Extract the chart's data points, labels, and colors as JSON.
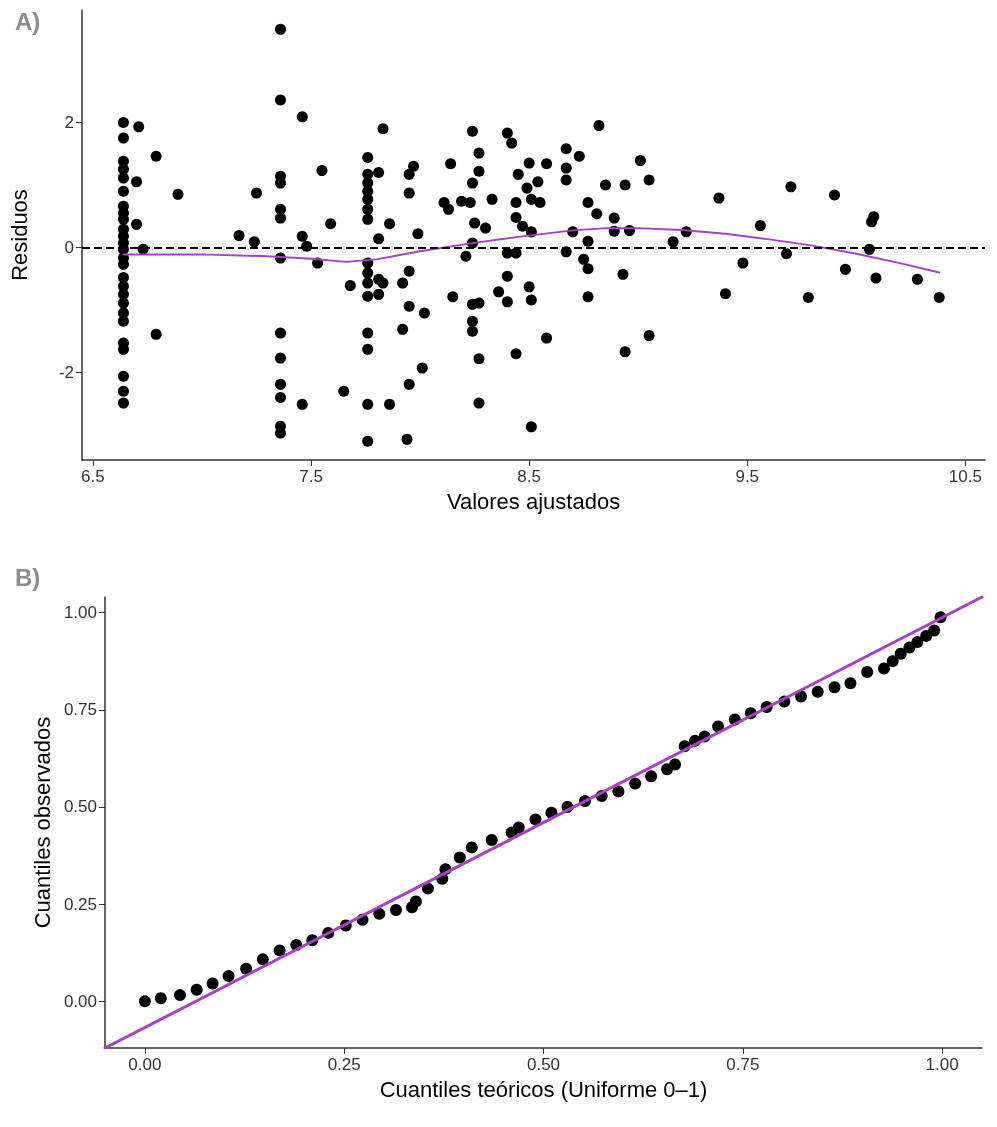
{
  "chart_data": [
    {
      "type": "scatter",
      "title": "A)",
      "xlabel": "Valores ajustados",
      "ylabel": "Residuos",
      "xlim": [
        6.45,
        10.59
      ],
      "ylim": [
        -3.4,
        3.8
      ],
      "xticks": [
        6.5,
        7.5,
        8.5,
        9.5,
        10.5
      ],
      "yticks": [
        -2,
        0,
        2
      ],
      "grid": false,
      "ref_lines": [
        {
          "axis": "y",
          "value": 0,
          "line_style": "dashed",
          "color": "#000000"
        }
      ],
      "series": [
        {
          "marker": "circle",
          "color": "#000000",
          "x": [
            6.64,
            6.64,
            6.64,
            6.64,
            6.64,
            6.64,
            6.64,
            6.64,
            6.64,
            6.64,
            6.64,
            6.64,
            6.64,
            6.64,
            6.64,
            6.64,
            6.64,
            6.64,
            6.64,
            6.64,
            6.64,
            6.64,
            6.64,
            6.64,
            6.64,
            6.64,
            6.71,
            6.7,
            6.7,
            6.73,
            6.79,
            6.79,
            6.89,
            7.17,
            7.25,
            7.24,
            7.36,
            7.36,
            7.36,
            7.36,
            7.36,
            7.36,
            7.36,
            7.36,
            7.36,
            7.36,
            7.36,
            7.36,
            7.36,
            7.46,
            7.46,
            7.48,
            7.46,
            7.55,
            7.59,
            7.53,
            7.65,
            7.68,
            7.76,
            7.76,
            7.76,
            7.76,
            7.76,
            7.76,
            7.76,
            7.76,
            7.76,
            7.76,
            7.76,
            7.76,
            7.76,
            7.76,
            7.76,
            7.81,
            7.81,
            7.81,
            7.81,
            7.83,
            7.86,
            7.83,
            7.86,
            7.95,
            7.97,
            7.95,
            7.99,
            7.95,
            7.92,
            7.95,
            8.02,
            7.92,
            8.01,
            7.95,
            7.94,
            8.14,
            8.11,
            8.13,
            8.15,
            8.24,
            8.27,
            8.27,
            8.24,
            8.19,
            8.23,
            8.25,
            8.3,
            8.24,
            8.21,
            8.33,
            8.24,
            8.27,
            8.24,
            8.24,
            8.27,
            8.27,
            8.4,
            8.42,
            8.36,
            8.4,
            8.4,
            8.4,
            8.44,
            8.45,
            8.44,
            8.44,
            8.47,
            8.44,
            8.5,
            8.49,
            8.54,
            8.51,
            8.55,
            8.51,
            8.5,
            8.51,
            8.58,
            8.51,
            8.58,
            8.67,
            8.73,
            8.67,
            8.67,
            8.77,
            8.81,
            8.7,
            8.77,
            8.67,
            8.75,
            8.77,
            8.77,
            8.82,
            8.85,
            8.89,
            8.89,
            8.93,
            8.94,
            8.94,
            8.96,
            9.01,
            9.05,
            9.05,
            9.16,
            9.22,
            9.37,
            9.4,
            9.48,
            9.56,
            9.68,
            9.7,
            9.78,
            9.9,
            9.95,
            10.06,
            10.07,
            10.08,
            10.09,
            10.28,
            10.38
          ],
          "values": [
            2.0,
            1.75,
            1.38,
            1.25,
            1.11,
            0.9,
            0.66,
            0.55,
            0.45,
            0.29,
            0.18,
            0.07,
            -0.03,
            -0.17,
            -0.27,
            -0.48,
            -0.62,
            -0.75,
            -0.89,
            -1.05,
            -1.18,
            -1.53,
            -1.63,
            -2.06,
            -2.3,
            -2.49,
            1.93,
            1.05,
            0.37,
            -0.03,
            1.46,
            -1.39,
            0.85,
            0.19,
            0.87,
            0.09,
            3.49,
            2.36,
            1.14,
            1.03,
            0.61,
            0.47,
            -0.17,
            -1.37,
            -1.77,
            -2.19,
            -2.4,
            -2.86,
            -2.97,
            2.09,
            0.18,
            0.02,
            -2.51,
            1.23,
            0.38,
            -0.25,
            -2.3,
            -0.61,
            1.44,
            1.17,
            1.03,
            0.9,
            0.77,
            0.61,
            0.45,
            -0.25,
            -0.41,
            -0.57,
            -0.78,
            -1.37,
            -1.63,
            -2.51,
            -3.1,
            1.2,
            0.14,
            -0.51,
            -0.75,
            -0.57,
            0.38,
            1.9,
            -2.51,
            1.17,
            1.3,
            0.87,
            0.22,
            -0.38,
            -0.57,
            -0.94,
            -1.05,
            -1.31,
            -1.93,
            -2.19,
            -3.07,
            1.34,
            0.72,
            0.61,
            -0.79,
            1.86,
            1.51,
            1.22,
            1.03,
            0.74,
            0.72,
            0.39,
            0.31,
            0.07,
            -0.14,
            0.77,
            -0.91,
            -0.89,
            -1.18,
            -1.34,
            -1.78,
            -2.49,
            1.83,
            1.67,
            -0.71,
            -0.46,
            -0.87,
            -0.09,
            -1.7,
            1.17,
            0.72,
            0.48,
            0.34,
            -0.09,
            1.35,
            0.95,
            1.05,
            0.77,
            0.72,
            0.25,
            -0.63,
            -0.84,
            -1.45,
            -2.87,
            1.34,
            1.58,
            1.46,
            1.27,
            1.08,
            0.72,
            0.54,
            0.25,
            0.1,
            -0.07,
            -0.19,
            -0.34,
            -0.79,
            1.95,
            1.0,
            0.47,
            0.26,
            -0.43,
            -1.67,
            1.0,
            0.27,
            1.39,
            1.08,
            -1.41,
            0.09,
            0.25,
            0.79,
            -0.74,
            -0.25,
            0.35,
            -0.1,
            0.97,
            -0.8,
            0.84,
            -0.35,
            -0.03,
            0.41,
            0.49,
            -0.49,
            -0.51,
            -0.8
          ]
        },
        {
          "type": "line",
          "marker": "none",
          "color": "#a83fc7",
          "x": [
            6.64,
            7.0,
            7.3,
            7.5,
            7.66,
            7.8,
            8.0,
            8.24,
            8.45,
            8.69,
            8.85,
            9.0,
            9.2,
            9.4,
            9.6,
            9.8,
            10.0,
            10.2,
            10.38
          ],
          "values": [
            -0.11,
            -0.11,
            -0.14,
            -0.18,
            -0.23,
            -0.19,
            -0.06,
            0.07,
            0.17,
            0.27,
            0.31,
            0.31,
            0.28,
            0.22,
            0.13,
            0.03,
            -0.1,
            -0.25,
            -0.4
          ]
        }
      ]
    },
    {
      "type": "scatter",
      "title": "B)",
      "xlabel": "Cuantiles teóricos (Uniforme 0–1)",
      "ylabel": "Cuantiles observados",
      "xlim": [
        -0.05,
        1.05
      ],
      "ylim": [
        -0.12,
        1.04
      ],
      "xticks": [
        {
          "value": 0,
          "label": "0.00"
        },
        {
          "value": 0.25,
          "label": "0.25"
        },
        {
          "value": 0.5,
          "label": "0.50"
        },
        {
          "value": 0.75,
          "label": "0.75"
        },
        {
          "value": 1,
          "label": "1.00"
        }
      ],
      "yticks": [
        {
          "value": 0,
          "label": "0.00"
        },
        {
          "value": 0.25,
          "label": "0.25"
        },
        {
          "value": 0.5,
          "label": "0.50"
        },
        {
          "value": 0.75,
          "label": "0.75"
        },
        {
          "value": 1,
          "label": "1.00"
        }
      ],
      "grid": false,
      "series": [
        {
          "marker": "circle",
          "color": "#000000",
          "x": [
            0,
            0.02,
            0.044,
            0.065,
            0.085,
            0.105,
            0.127,
            0.148,
            0.169,
            0.19,
            0.21,
            0.23,
            0.252,
            0.273,
            0.294,
            0.315,
            0.335,
            0.34,
            0.355,
            0.373,
            0.377,
            0.395,
            0.41,
            0.435,
            0.46,
            0.469,
            0.49,
            0.51,
            0.53,
            0.552,
            0.573,
            0.594,
            0.615,
            0.635,
            0.655,
            0.665,
            0.677,
            0.69,
            0.702,
            0.719,
            0.74,
            0.76,
            0.78,
            0.802,
            0.823,
            0.844,
            0.865,
            0.885,
            0.906,
            0.927,
            0.938,
            0.948,
            0.959,
            0.969,
            0.98,
            0.99,
            0.998
          ],
          "values": [
            0,
            0.008,
            0.016,
            0.03,
            0.046,
            0.065,
            0.084,
            0.108,
            0.131,
            0.145,
            0.157,
            0.176,
            0.195,
            0.21,
            0.225,
            0.235,
            0.242,
            0.257,
            0.29,
            0.315,
            0.34,
            0.37,
            0.396,
            0.415,
            0.434,
            0.447,
            0.468,
            0.485,
            0.5,
            0.515,
            0.528,
            0.54,
            0.56,
            0.579,
            0.597,
            0.609,
            0.656,
            0.67,
            0.681,
            0.707,
            0.725,
            0.741,
            0.757,
            0.771,
            0.784,
            0.796,
            0.808,
            0.818,
            0.847,
            0.856,
            0.875,
            0.894,
            0.91,
            0.924,
            0.94,
            0.954,
            0.988
          ]
        },
        {
          "type": "line",
          "marker": "none",
          "color": "#a83fc7",
          "x": [
            -0.05,
            1.05
          ],
          "values": [
            -0.12,
            1.04
          ]
        }
      ]
    }
  ]
}
